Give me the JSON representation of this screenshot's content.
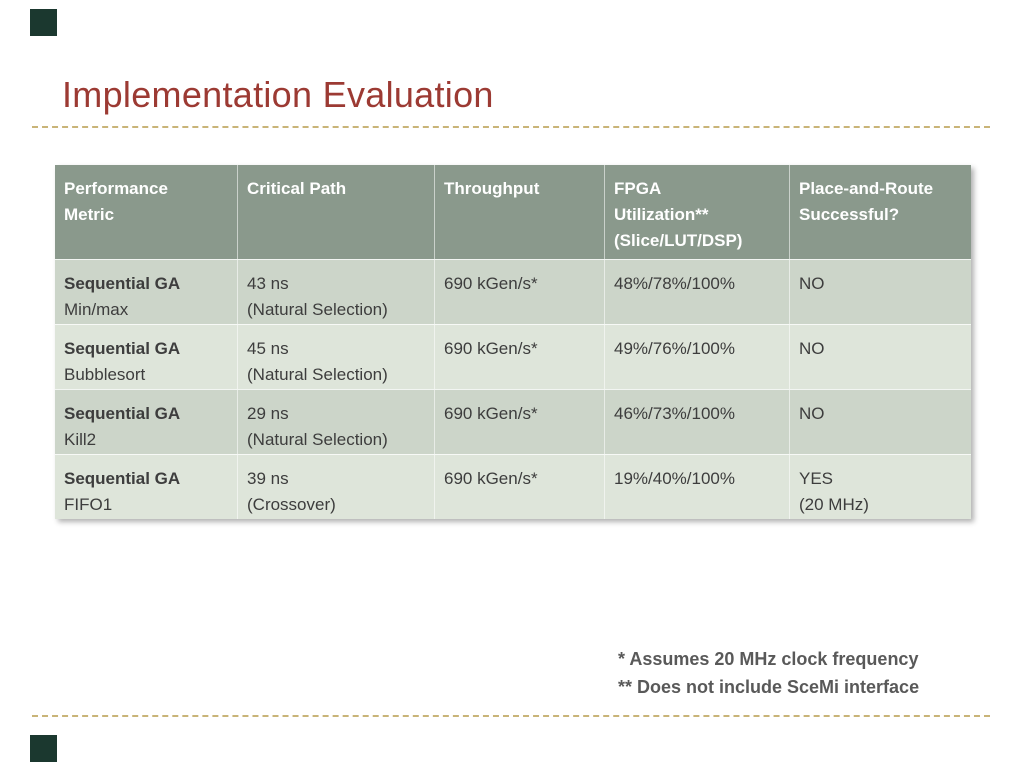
{
  "slide": {
    "title": "Implementation Evaluation"
  },
  "colors": {
    "title_text": "#9c3a33",
    "dashed_rule": "#c9b478",
    "corner_marker": "#1b382f",
    "table_header_bg": "#8a998c",
    "table_header_text": "#ffffff",
    "row_dark_bg": "#ccd5c9",
    "row_light_bg": "#dee5da",
    "body_text": "#3d3d3d",
    "footnote_text": "#595959"
  },
  "table": {
    "columns": [
      {
        "lines": [
          "Performance",
          "Metric"
        ]
      },
      {
        "lines": [
          "Critical Path"
        ]
      },
      {
        "lines": [
          "Throughput"
        ]
      },
      {
        "lines": [
          "FPGA",
          "Utilization**",
          "(Slice/LUT/DSP)"
        ]
      },
      {
        "lines": [
          "Place-and-Route",
          "Successful?"
        ]
      }
    ],
    "rows": [
      {
        "metric": {
          "name": "Sequential GA",
          "variant": "Min/max"
        },
        "critical_path": {
          "value": "43 ns",
          "method": "(Natural Selection)"
        },
        "throughput": "690 kGen/s*",
        "fpga_utilization": "48%/78%/100%",
        "place_and_route": {
          "value": "NO",
          "note": ""
        }
      },
      {
        "metric": {
          "name": "Sequential GA",
          "variant": "Bubblesort"
        },
        "critical_path": {
          "value": "45 ns",
          "method": "(Natural Selection)"
        },
        "throughput": "690 kGen/s*",
        "fpga_utilization": "49%/76%/100%",
        "place_and_route": {
          "value": "NO",
          "note": ""
        }
      },
      {
        "metric": {
          "name": "Sequential GA",
          "variant": "Kill2"
        },
        "critical_path": {
          "value": "29 ns",
          "method": "(Natural Selection)"
        },
        "throughput": "690 kGen/s*",
        "fpga_utilization": "46%/73%/100%",
        "place_and_route": {
          "value": "NO",
          "note": ""
        }
      },
      {
        "metric": {
          "name": "Sequential GA",
          "variant": "FIFO1"
        },
        "critical_path": {
          "value": "39 ns",
          "method": "(Crossover)"
        },
        "throughput": "690 kGen/s*",
        "fpga_utilization": "19%/40%/100%",
        "place_and_route": {
          "value": "YES",
          "note": "(20 MHz)"
        }
      }
    ]
  },
  "footnotes": {
    "line1": "* Assumes 20 MHz clock frequency",
    "line2": "** Does not include SceMi interface"
  }
}
